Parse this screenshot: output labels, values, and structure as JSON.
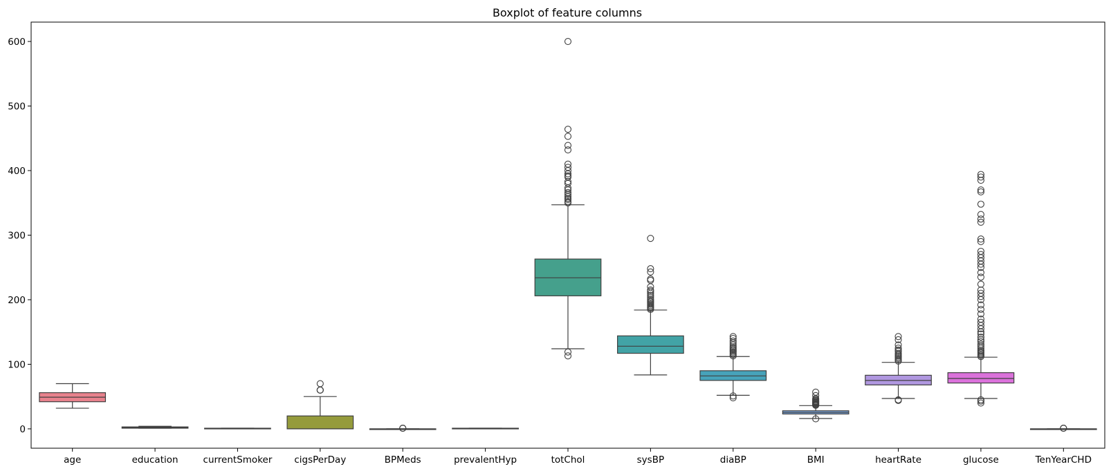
{
  "chart_data": {
    "type": "boxplot",
    "title": "Boxplot of feature columns",
    "xlabel": "",
    "ylabel": "",
    "ylim": [
      -30,
      630
    ],
    "yticks": [
      0,
      100,
      200,
      300,
      400,
      500,
      600
    ],
    "ytick_labels": [
      "0",
      "100",
      "200",
      "300",
      "400",
      "500",
      "600"
    ],
    "grid": false,
    "categories": [
      "age",
      "education",
      "currentSmoker",
      "cigsPerDay",
      "BPMeds",
      "prevalentHyp",
      "totChol",
      "sysBP",
      "diaBP",
      "BMI",
      "heartRate",
      "glucose",
      "TenYearCHD"
    ],
    "boxes": [
      {
        "name": "age",
        "color": "#e8828d",
        "whislo": 32,
        "q1": 42,
        "median": 49,
        "q3": 56,
        "whishi": 70,
        "fliers": []
      },
      {
        "name": "education",
        "color": "#d6895a",
        "whislo": 1,
        "q1": 1,
        "median": 2,
        "q3": 3,
        "whishi": 4,
        "fliers": []
      },
      {
        "name": "currentSmoker",
        "color": "#b99c3a",
        "whislo": 0,
        "q1": 0,
        "median": 0,
        "q3": 1,
        "whishi": 1,
        "fliers": []
      },
      {
        "name": "cigsPerDay",
        "color": "#959b3c",
        "whislo": 0,
        "q1": 0,
        "median": 0,
        "q3": 20,
        "whishi": 50,
        "fliers": [
          60,
          60,
          60,
          70
        ]
      },
      {
        "name": "BPMeds",
        "color": "#6aa84f",
        "whislo": 0,
        "q1": 0,
        "median": 0,
        "q3": 0,
        "whishi": 0,
        "fliers": [
          1,
          1,
          1
        ]
      },
      {
        "name": "prevalentHyp",
        "color": "#4fa77c",
        "whislo": 0,
        "q1": 0,
        "median": 0,
        "q3": 1,
        "whishi": 1,
        "fliers": []
      },
      {
        "name": "totChol",
        "color": "#45a08c",
        "whislo": 124,
        "q1": 206,
        "median": 234,
        "q3": 263,
        "whishi": 347,
        "fliers": [
          113,
          119,
          350,
          352,
          355,
          357,
          360,
          363,
          366,
          370,
          373,
          380,
          383,
          390,
          392,
          395,
          400,
          405,
          410,
          432,
          439,
          453,
          464,
          600
        ]
      },
      {
        "name": "sysBP",
        "color": "#42a3a6",
        "whislo": 83.5,
        "q1": 117,
        "median": 128,
        "q3": 144,
        "whishi": 184,
        "fliers": [
          185,
          187,
          189,
          191,
          193,
          195,
          197,
          199,
          201,
          204,
          207,
          210,
          213,
          215,
          220,
          230,
          232,
          243,
          248,
          295
        ]
      },
      {
        "name": "diaBP",
        "color": "#47a3ba",
        "whislo": 52,
        "q1": 75,
        "median": 82,
        "q3": 90,
        "whishi": 112,
        "fliers": [
          48,
          51,
          113,
          115,
          117,
          119,
          121,
          123,
          125,
          127,
          130,
          133,
          136,
          140,
          143
        ]
      },
      {
        "name": "BMI",
        "color": "#7ba3d9",
        "whislo": 16,
        "q1": 23,
        "median": 25.4,
        "q3": 28,
        "whishi": 36,
        "fliers": [
          15.5,
          36.5,
          37.5,
          38.5,
          39.5,
          40.5,
          41.5,
          42.5,
          44,
          45.5,
          47,
          51.5,
          56.8
        ]
      },
      {
        "name": "heartRate",
        "color": "#b097e0",
        "whislo": 47,
        "q1": 68,
        "median": 75,
        "q3": 83,
        "whishi": 103,
        "fliers": [
          44,
          45,
          105,
          107,
          109,
          111,
          113,
          115,
          117,
          120,
          122,
          125,
          130,
          138,
          143
        ]
      },
      {
        "name": "glucose",
        "color": "#db72db",
        "whislo": 47,
        "q1": 71,
        "median": 78,
        "q3": 87,
        "whishi": 111,
        "fliers": [
          40,
          43,
          45,
          112,
          114,
          116,
          118,
          120,
          122,
          125,
          128,
          131,
          135,
          138,
          142,
          147,
          150,
          155,
          160,
          165,
          170,
          178,
          185,
          192,
          200,
          205,
          210,
          215,
          224,
          235,
          242,
          250,
          255,
          260,
          265,
          270,
          275,
          290,
          294,
          320,
          325,
          332,
          348,
          367,
          370,
          385,
          390,
          394
        ]
      },
      {
        "name": "TenYearCHD",
        "color": "#e27ba6",
        "whislo": 0,
        "q1": 0,
        "median": 0,
        "q3": 0,
        "whishi": 0,
        "fliers": [
          1,
          1,
          1
        ]
      }
    ]
  }
}
